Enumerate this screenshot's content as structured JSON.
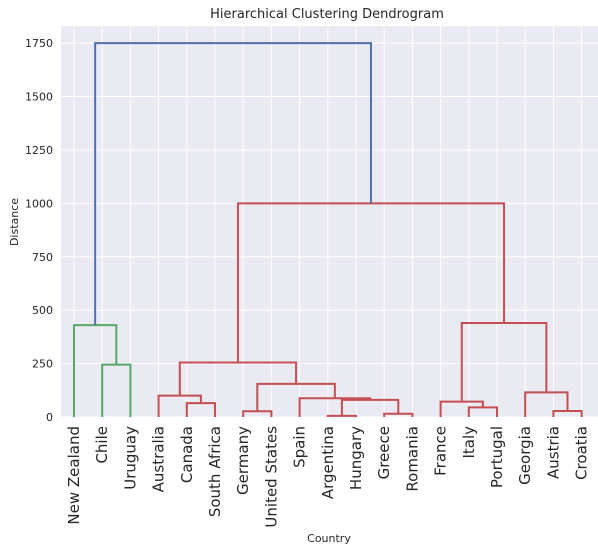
{
  "chart_data": {
    "type": "dendrogram",
    "title": "Hierarchical Clustering Dendrogram",
    "xlabel": "Country",
    "ylabel": "Distance",
    "ylim": [
      0,
      1830
    ],
    "yticks": [
      0,
      250,
      500,
      750,
      1000,
      1250,
      1500,
      1750
    ],
    "grid": true,
    "background": "#EAEAF2",
    "leaves": [
      "New Zealand",
      "Chile",
      "Uruguay",
      "Australia",
      "Canada",
      "South Africa",
      "Germany",
      "United States",
      "Spain",
      "Argentina",
      "Hungary",
      "Greece",
      "Romania",
      "France",
      "Italy",
      "Portugal",
      "Georgia",
      "Austria",
      "Croatia"
    ],
    "links": [
      {
        "left": "Chile",
        "right": "Uruguay",
        "height": 245,
        "color": "#55A868"
      },
      {
        "left": "New Zealand",
        "right": "[Chile, Uruguay]",
        "height": 430,
        "color": "#55A868"
      },
      {
        "left": "Canada",
        "right": "South Africa",
        "height": 65,
        "color": "#C44E52"
      },
      {
        "left": "Australia",
        "right": "[Canada, South Africa]",
        "height": 100,
        "color": "#C44E52"
      },
      {
        "left": "Germany",
        "right": "United States",
        "height": 27,
        "color": "#C44E52"
      },
      {
        "left": "Argentina",
        "right": "Hungary",
        "height": 5,
        "color": "#C44E52"
      },
      {
        "left": "Greece",
        "right": "Romania",
        "height": 15,
        "color": "#C44E52"
      },
      {
        "left": "[Argentina, Hungary]",
        "right": "[Greece, Romania]",
        "height": 80,
        "color": "#C44E52"
      },
      {
        "left": "Spain",
        "right": "[Argentina, Hungary, Greece, Romania]",
        "height": 88,
        "color": "#C44E52"
      },
      {
        "left": "[Germany, United States]",
        "right": "[Spain, Argentina, Hungary, Greece, Romania]",
        "height": 155,
        "color": "#C44E52"
      },
      {
        "left": "[Australia, Canada, South Africa]",
        "right": "[Germany ... Romania]",
        "height": 255,
        "color": "#C44E52"
      },
      {
        "left": "Italy",
        "right": "Portugal",
        "height": 45,
        "color": "#C44E52"
      },
      {
        "left": "France",
        "right": "[Italy, Portugal]",
        "height": 72,
        "color": "#C44E52"
      },
      {
        "left": "Austria",
        "right": "Croatia",
        "height": 28,
        "color": "#C44E52"
      },
      {
        "left": "Georgia",
        "right": "[Austria, Croatia]",
        "height": 115,
        "color": "#C44E52"
      },
      {
        "left": "[France, Italy, Portugal]",
        "right": "[Georgia, Austria, Croatia]",
        "height": 440,
        "color": "#C44E52"
      },
      {
        "left": "[Australia ... Romania]",
        "right": "[France ... Croatia]",
        "height": 1000,
        "color": "#C44E52"
      },
      {
        "left": "[New Zealand, Chile, Uruguay]",
        "right": "[Australia ... Croatia]",
        "height": 1750,
        "color": "#4C72B0"
      }
    ]
  }
}
